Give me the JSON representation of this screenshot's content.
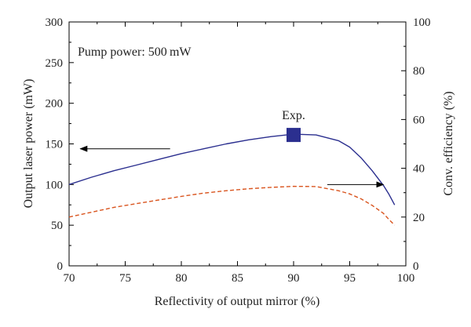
{
  "chart_data": {
    "type": "line",
    "x": [
      70,
      72,
      74,
      76,
      78,
      80,
      82,
      84,
      86,
      88,
      90,
      92,
      94,
      95,
      96,
      97,
      98,
      98.5,
      99
    ],
    "xlabel": "Reflectivity of output mirror (%)",
    "ylabel": "Output laser power (mW)",
    "y2label": "Conv. efficiency (%)",
    "xlim": [
      70,
      100
    ],
    "ylim": [
      0,
      300
    ],
    "y2lim": [
      0,
      100
    ],
    "xticks": [
      "70",
      "75",
      "80",
      "85",
      "90",
      "95",
      "100"
    ],
    "yticks": [
      "0",
      "50",
      "100",
      "150",
      "200",
      "250",
      "300"
    ],
    "y2ticks": [
      "0",
      "20",
      "40",
      "60",
      "80",
      "100"
    ],
    "grid": false,
    "series": [
      {
        "axis": "left",
        "color": "#2b2f8f",
        "style": "solid",
        "values": [
          100,
          109,
          117,
          124,
          131,
          138,
          144,
          150,
          155,
          159,
          162,
          161,
          154,
          146,
          133,
          117,
          99,
          88,
          75
        ]
      },
      {
        "axis": "right",
        "color": "#d9541e",
        "style": "dashed",
        "values": [
          20,
          22,
          24,
          25.5,
          27,
          28.5,
          29.8,
          30.8,
          31.6,
          32.2,
          32.6,
          32.5,
          30.8,
          29.5,
          27.5,
          24.8,
          21.5,
          19,
          16.7
        ]
      }
    ],
    "experimental_point": {
      "x": 90,
      "y": 161,
      "label": "Exp.",
      "color": "#2b2f8f"
    },
    "annotations": {
      "pump": "Pump power: 500 mW",
      "left_arrow": {
        "x_from": 79,
        "x_to": 71,
        "y": 144,
        "axis": "left"
      },
      "right_arrow": {
        "x_from": 93,
        "x_to": 98,
        "y": 100,
        "axis": "left"
      }
    }
  }
}
